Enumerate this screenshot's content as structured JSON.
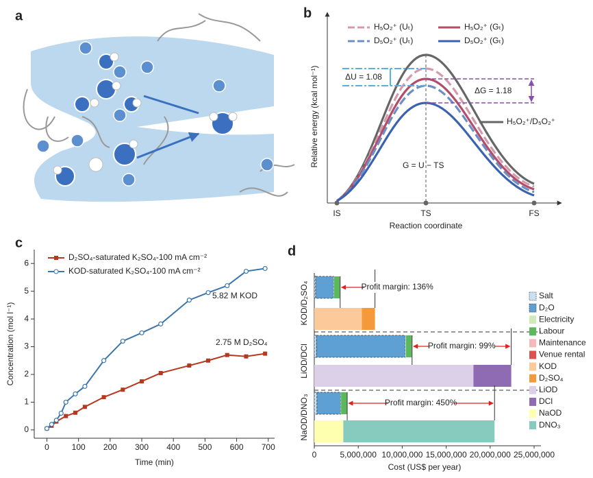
{
  "panel_a": {
    "label": "a"
  },
  "panel_b": {
    "label": "b",
    "ylabel": "Relative energy (kcal mol⁻¹)",
    "xlabel": "Reaction coordinate",
    "points": [
      "IS",
      "TS",
      "FS"
    ],
    "legend": [
      "H₅O₂⁺ (Uₜ)",
      "H₅O₂⁺ (Gₜ)",
      "D₅O₂⁺ (Uₜ)",
      "D₅O₂⁺ (Gₜ)"
    ],
    "delta_u": "ΔU = 1.08",
    "delta_g": "ΔG = 1.18",
    "gray_label": "H₅O₂⁺/D₅O₂⁺",
    "equation": "G = U − TS"
  },
  "chart_data": [
    {
      "label": "c",
      "type": "line",
      "xlabel": "Time (min)",
      "ylabel": "Concentration (mol l⁻¹)",
      "xlim": [
        -40,
        720
      ],
      "ylim": [
        -0.3,
        6.5
      ],
      "xticks": [
        0,
        100,
        200,
        300,
        400,
        500,
        600,
        700
      ],
      "yticks": [
        0,
        1,
        2,
        3,
        4,
        5,
        6
      ],
      "legend": "upper left",
      "series": [
        {
          "name": "D₂SO₄-saturated K₂SO₄-100 mA cm⁻²",
          "color": "#b5381f",
          "marker": "square",
          "x": [
            0,
            15,
            30,
            60,
            90,
            120,
            180,
            240,
            300,
            360,
            450,
            510,
            570,
            630,
            690
          ],
          "values": [
            0.05,
            0.15,
            0.3,
            0.5,
            0.62,
            0.83,
            1.18,
            1.45,
            1.75,
            2.05,
            2.32,
            2.5,
            2.7,
            2.65,
            2.75
          ]
        },
        {
          "name": "KOD-saturated K₂SO₄-100 mA cm⁻²",
          "color": "#3a76ad",
          "marker": "circle",
          "x": [
            0,
            15,
            30,
            45,
            60,
            90,
            120,
            180,
            240,
            300,
            360,
            450,
            510,
            570,
            630,
            690
          ],
          "values": [
            0.05,
            0.2,
            0.35,
            0.6,
            1.0,
            1.3,
            1.57,
            2.5,
            3.2,
            3.5,
            3.82,
            4.68,
            4.95,
            5.2,
            5.72,
            5.82
          ]
        }
      ],
      "annotations": [
        "5.82 M KOD",
        "2.75 M D₂SO₄"
      ]
    },
    {
      "label": "d",
      "type": "stacked-barh",
      "xlabel": "Cost (US$ per year)",
      "xlim": [
        0,
        25000000
      ],
      "xticks": [
        0,
        {
          "value": 5000000,
          "label": "5,000,000"
        },
        {
          "value": 10000000,
          "label": "10,000,000"
        },
        {
          "value": 15000000,
          "label": "15,000,000"
        },
        {
          "value": 20000000,
          "label": "20,000,000"
        },
        {
          "value": 25000000,
          "label": "25,000,000"
        }
      ],
      "categories": [
        "KOD/D₂SO₄",
        null,
        "LiOD/DCl",
        null,
        "NaOD/DNO₃",
        null
      ],
      "series": [
        {
          "name": "Salt",
          "color": "#c9e2f2",
          "dashed": true,
          "values": [
            150000,
            null,
            250000,
            null,
            300000,
            null
          ]
        },
        {
          "name": "D₂O",
          "color": "#5fa0d4",
          "dashed": true,
          "values": [
            2050000,
            null,
            10100000,
            null,
            2700000,
            null
          ]
        },
        {
          "name": "Electricity",
          "color": "#cfe9b8",
          "values": [
            50000,
            null,
            80000,
            null,
            50000,
            null
          ]
        },
        {
          "name": "Labour",
          "color": "#5cb85c",
          "values": [
            650000,
            null,
            650000,
            null,
            650000,
            null
          ]
        },
        {
          "name": "Maintenance",
          "color": "#f6b8b8",
          "values": [
            20000,
            null,
            20000,
            null,
            20000,
            null
          ]
        },
        {
          "name": "Venue rental",
          "color": "#e05050",
          "values": [
            20000,
            null,
            20000,
            null,
            20000,
            null
          ]
        },
        {
          "name": "KOD",
          "color": "#fbc99a",
          "values": [
            null,
            5400000,
            null,
            null,
            null,
            null
          ]
        },
        {
          "name": "D₂SO₄",
          "color": "#f59a3a",
          "values": [
            null,
            1500000,
            null,
            null,
            null,
            null
          ]
        },
        {
          "name": "LiOD",
          "color": "#dccfe8",
          "values": [
            null,
            null,
            null,
            18100000,
            null,
            null
          ]
        },
        {
          "name": "DCl",
          "color": "#8e6bb3",
          "values": [
            null,
            null,
            null,
            4300000,
            null,
            null
          ]
        },
        {
          "name": "NaOD",
          "color": "#ffffb0",
          "values": [
            null,
            null,
            null,
            null,
            null,
            3300000
          ]
        },
        {
          "name": "DNO₃",
          "color": "#86cbbd",
          "values": [
            null,
            null,
            null,
            null,
            null,
            17200000
          ]
        }
      ],
      "annotations": [
        "Profit margin: 136%",
        "Profit margin: 99%",
        "Profit margin: 450%"
      ]
    }
  ]
}
